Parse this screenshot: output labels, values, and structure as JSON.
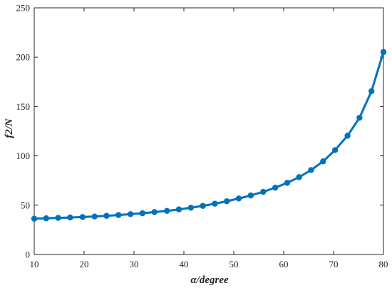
{
  "chart_data": {
    "type": "line",
    "xlabel": "α/degree",
    "ylabel": "f2/N",
    "xlim": [
      10,
      80
    ],
    "ylim": [
      0,
      250
    ],
    "x_ticks": [
      "10",
      "20",
      "30",
      "40",
      "50",
      "60",
      "70",
      "80"
    ],
    "y_ticks": [
      "0",
      "50",
      "100",
      "150",
      "200",
      "250"
    ],
    "grid": false,
    "legend": "none",
    "series": [
      {
        "color": "#0072BD",
        "marker": "circle",
        "x": [
          10,
          12.4,
          14.8,
          17.2,
          19.7,
          22.1,
          24.5,
          26.9,
          29.3,
          31.7,
          34.1,
          36.6,
          39.0,
          41.4,
          43.8,
          46.2,
          48.6,
          51.0,
          53.4,
          55.9,
          58.3,
          60.7,
          63.1,
          65.5,
          67.9,
          70.3,
          72.8,
          75.2,
          77.6,
          80
        ],
        "y": [
          36.3,
          36.7,
          37.1,
          37.5,
          38.0,
          38.5,
          39.2,
          40.0,
          40.9,
          41.8,
          43.0,
          44.2,
          45.7,
          47.4,
          49.3,
          51.5,
          54.0,
          56.8,
          59.8,
          63.5,
          67.7,
          72.6,
          78.4,
          85.6,
          94.4,
          105.8,
          120.4,
          138.6,
          165.5,
          205.2
        ]
      }
    ]
  }
}
